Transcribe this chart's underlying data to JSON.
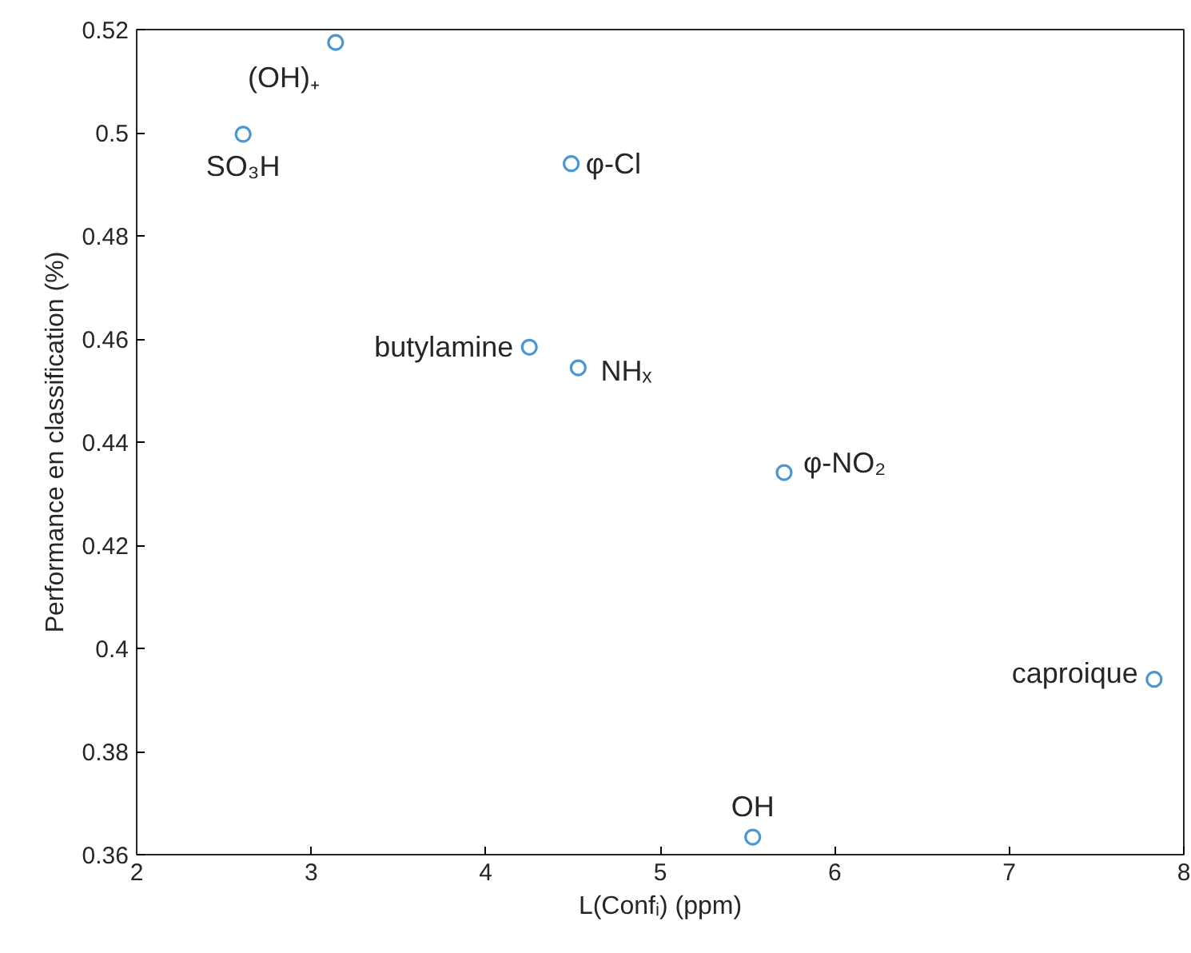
{
  "chart_data": {
    "type": "scatter",
    "xlabel": "L(Confᵢ) (ppm)",
    "ylabel": "Performance en classification (%)",
    "x": [
      3.14,
      2.61,
      4.49,
      4.25,
      4.53,
      5.71,
      7.83,
      5.53
    ],
    "series": [
      {
        "color": "#4a97d4",
        "values": [
          0.5175,
          0.4997,
          0.494,
          0.4584,
          0.4544,
          0.4341,
          0.394,
          0.3634
        ]
      }
    ],
    "annotations": [
      {
        "text": "(OH)₊",
        "x": 3.14,
        "y": 0.5175
      },
      {
        "text": "SO₃H",
        "x": 2.61,
        "y": 0.4997
      },
      {
        "text": "φ-Cl",
        "x": 4.49,
        "y": 0.494
      },
      {
        "text": "butylamine",
        "x": 4.25,
        "y": 0.4584
      },
      {
        "text": "NHₓ",
        "x": 4.53,
        "y": 0.4544
      },
      {
        "text": "φ-NO₂",
        "x": 5.71,
        "y": 0.4341
      },
      {
        "text": "caproique",
        "x": 7.83,
        "y": 0.394
      },
      {
        "text": "OH",
        "x": 5.53,
        "y": 0.3634
      }
    ],
    "xlim": [
      2,
      8
    ],
    "xticks": [
      2,
      3,
      4,
      5,
      6,
      7,
      8
    ],
    "ylim": [
      0.36,
      0.52
    ],
    "yticks": [
      0.36,
      0.38,
      {
        "value": 0.4,
        "label": "0.4"
      },
      0.42,
      0.44,
      0.46,
      0.48,
      {
        "value": 0.5,
        "label": "0.5"
      },
      0.52
    ],
    "grid": false,
    "marker": "circle"
  }
}
